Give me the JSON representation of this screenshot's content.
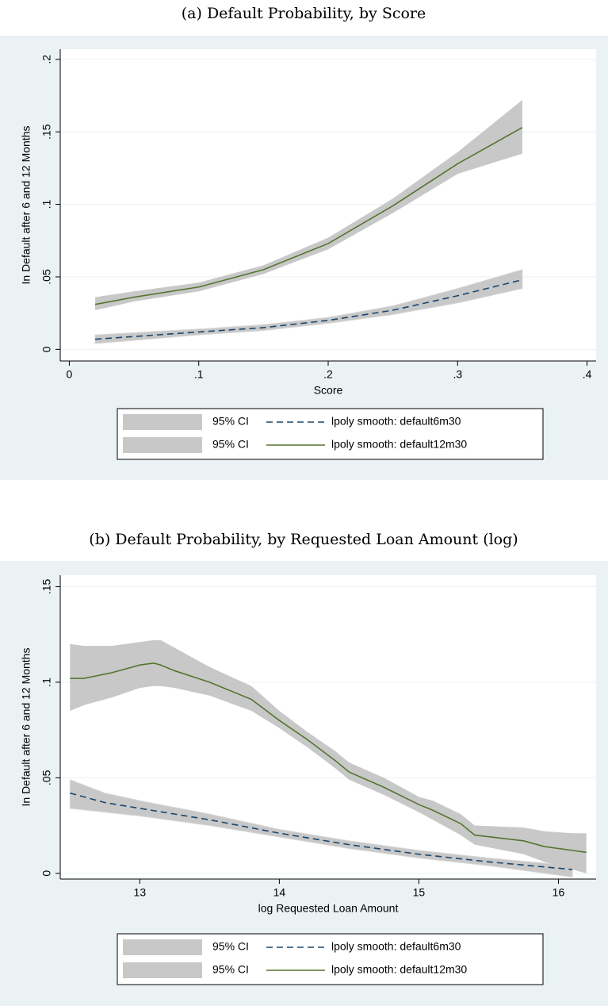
{
  "chart_data": [
    {
      "type": "line",
      "title": "(a) Default Probability, by Score",
      "xlabel": "Score",
      "ylabel": "In Default after 6 and 12 Months",
      "xlim": [
        -0.007,
        0.407
      ],
      "ylim": [
        -0.008,
        0.207
      ],
      "xticks": [
        0,
        {
          "value": 0.1,
          "label": ".1"
        },
        {
          "value": 0.2,
          "label": ".2"
        },
        {
          "value": 0.3,
          "label": ".3"
        },
        {
          "value": 0.4,
          "label": ".4"
        }
      ],
      "yticks": [
        0,
        {
          "value": 0.05,
          "label": ".05"
        },
        {
          "value": 0.1,
          "label": ".1"
        },
        {
          "value": 0.15,
          "label": ".15"
        },
        {
          "value": 0.2,
          "label": ".2"
        }
      ],
      "grid": true,
      "ci_color": "#c8c8c8",
      "series": [
        {
          "name": "lpoly smooth: default6m30",
          "ci_name": "95% CI",
          "color": "#1a476f",
          "dash": true,
          "x": [
            0.02,
            0.1,
            0.15,
            0.2,
            0.25,
            0.3,
            0.35
          ],
          "values": [
            0.007,
            0.012,
            0.015,
            0.02,
            0.027,
            0.037,
            0.048
          ],
          "lower": [
            0.004,
            0.01,
            0.013,
            0.018,
            0.024,
            0.032,
            0.042
          ],
          "upper": [
            0.01,
            0.014,
            0.017,
            0.022,
            0.03,
            0.042,
            0.055
          ]
        },
        {
          "name": "lpoly smooth: default12m30",
          "ci_name": "95% CI",
          "color": "#55752f",
          "dash": false,
          "x": [
            0.02,
            0.05,
            0.1,
            0.15,
            0.2,
            0.25,
            0.3,
            0.35
          ],
          "values": [
            0.031,
            0.036,
            0.043,
            0.055,
            0.073,
            0.099,
            0.128,
            0.153
          ],
          "lower": [
            0.027,
            0.033,
            0.04,
            0.052,
            0.069,
            0.094,
            0.121,
            0.135
          ],
          "upper": [
            0.036,
            0.04,
            0.046,
            0.058,
            0.077,
            0.104,
            0.136,
            0.172
          ]
        }
      ]
    },
    {
      "type": "line",
      "title": "(b) Default Probability, by Requested Loan Amount (log)",
      "xlabel": "log Requested Loan Amount",
      "ylabel": "In Default after 6 and 12 Months",
      "xlim": [
        12.43,
        16.27
      ],
      "ylim": [
        -0.003,
        0.156
      ],
      "xticks": [
        13,
        14,
        15,
        16
      ],
      "yticks": [
        0,
        {
          "value": 0.05,
          "label": ".05"
        },
        {
          "value": 0.1,
          "label": ".1"
        },
        {
          "value": 0.15,
          "label": ".15"
        }
      ],
      "grid": true,
      "ci_color": "#c8c8c8",
      "series": [
        {
          "name": "lpoly smooth: default6m30",
          "ci_name": "95% CI",
          "color": "#1a476f",
          "dash": true,
          "x": [
            12.5,
            12.75,
            13,
            13.5,
            14,
            14.5,
            15,
            15.5,
            16.1
          ],
          "values": [
            0.042,
            0.037,
            0.034,
            0.028,
            0.021,
            0.015,
            0.01,
            0.006,
            0.002
          ],
          "lower": [
            0.034,
            0.032,
            0.03,
            0.025,
            0.019,
            0.013,
            0.008,
            0.004,
            -0.002
          ],
          "upper": [
            0.049,
            0.042,
            0.038,
            0.031,
            0.023,
            0.017,
            0.012,
            0.008,
            0.004
          ]
        },
        {
          "name": "lpoly smooth: default12m30",
          "ci_name": "95% CI",
          "color": "#55752f",
          "dash": false,
          "x": [
            12.5,
            12.6,
            12.8,
            13,
            13.1,
            13.15,
            13.25,
            13.5,
            13.8,
            14,
            14.2,
            14.4,
            14.5,
            14.75,
            15,
            15.1,
            15.3,
            15.4,
            15.75,
            15.9,
            16.1,
            16.2
          ],
          "values": [
            0.102,
            0.102,
            0.105,
            0.109,
            0.11,
            0.109,
            0.106,
            0.1,
            0.091,
            0.08,
            0.07,
            0.059,
            0.053,
            0.045,
            0.036,
            0.033,
            0.026,
            0.02,
            0.017,
            0.014,
            0.012,
            0.011
          ],
          "lower": [
            0.085,
            0.088,
            0.092,
            0.097,
            0.098,
            0.098,
            0.097,
            0.093,
            0.085,
            0.076,
            0.066,
            0.055,
            0.049,
            0.041,
            0.032,
            0.028,
            0.02,
            0.015,
            0.01,
            0.006,
            0.002,
            0
          ],
          "upper": [
            0.12,
            0.119,
            0.119,
            0.121,
            0.122,
            0.122,
            0.118,
            0.108,
            0.098,
            0.085,
            0.074,
            0.064,
            0.058,
            0.05,
            0.04,
            0.038,
            0.031,
            0.025,
            0.024,
            0.022,
            0.021,
            0.021
          ]
        }
      ]
    }
  ]
}
